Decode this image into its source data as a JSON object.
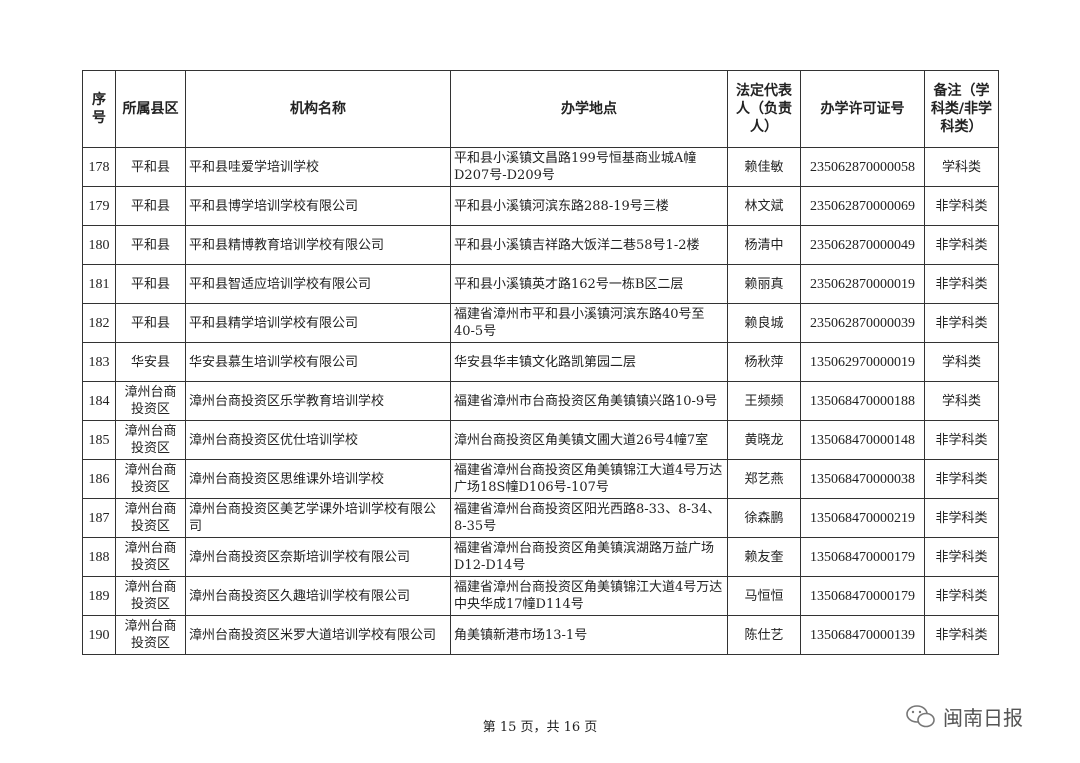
{
  "headers": [
    "序号",
    "所属县区",
    "机构名称",
    "办学地点",
    "法定代表人（负责人）",
    "办学许可证号",
    "备注（学科类/非学科类）"
  ],
  "rows": [
    [
      "178",
      "平和县",
      "平和县哇爱学培训学校",
      "平和县小溪镇文昌路199号恒基商业城A幢D207号-D209号",
      "赖佳敏",
      "235062870000058",
      "学科类"
    ],
    [
      "179",
      "平和县",
      "平和县博学培训学校有限公司",
      "平和县小溪镇河滨东路288-19号三楼",
      "林文斌",
      "235062870000069",
      "非学科类"
    ],
    [
      "180",
      "平和县",
      "平和县精博教育培训学校有限公司",
      "平和县小溪镇吉祥路大饭洋二巷58号1-2楼",
      "杨清中",
      "235062870000049",
      "非学科类"
    ],
    [
      "181",
      "平和县",
      "平和县智适应培训学校有限公司",
      "平和县小溪镇英才路162号一栋B区二层",
      "赖丽真",
      "235062870000019",
      "非学科类"
    ],
    [
      "182",
      "平和县",
      "平和县精学培训学校有限公司",
      "福建省漳州市平和县小溪镇河滨东路40号至40-5号",
      "赖良城",
      "235062870000039",
      "非学科类"
    ],
    [
      "183",
      "华安县",
      "华安县慕生培训学校有限公司",
      "华安县华丰镇文化路凯第园二层",
      "杨秋萍",
      "135062970000019",
      "学科类"
    ],
    [
      "184",
      "漳州台商投资区",
      "漳州台商投资区乐学教育培训学校",
      "福建省漳州市台商投资区角美镇镇兴路10-9号",
      "王频频",
      "135068470000188",
      "学科类"
    ],
    [
      "185",
      "漳州台商投资区",
      "漳州台商投资区优仕培训学校",
      "漳州台商投资区角美镇文圃大道26号4幢7室",
      "黄晓龙",
      "135068470000148",
      "非学科类"
    ],
    [
      "186",
      "漳州台商投资区",
      "漳州台商投资区思维课外培训学校",
      "福建省漳州台商投资区角美镇锦江大道4号万达广场18S幢D106号-107号",
      "郑艺燕",
      "135068470000038",
      "非学科类"
    ],
    [
      "187",
      "漳州台商投资区",
      "漳州台商投资区美艺学课外培训学校有限公司",
      "福建省漳州台商投资区阳光西路8-33、8-34、8-35号",
      "徐森鹏",
      "135068470000219",
      "非学科类"
    ],
    [
      "188",
      "漳州台商投资区",
      "漳州台商投资区奈斯培训学校有限公司",
      "福建省漳州台商投资区角美镇滨湖路万益广场D12-D14号",
      "赖友奎",
      "135068470000179",
      "非学科类"
    ],
    [
      "189",
      "漳州台商投资区",
      "漳州台商投资区久趣培训学校有限公司",
      "福建省漳州台商投资区角美镇锦江大道4号万达中央华成17幢D114号",
      "马恒恒",
      "135068470000179",
      "非学科类"
    ],
    [
      "190",
      "漳州台商投资区",
      "漳州台商投资区米罗大道培训学校有限公司",
      "角美镇新港市场13-1号",
      "陈仕艺",
      "135068470000139",
      "非学科类"
    ]
  ],
  "footer": "第 15 页，共 16 页",
  "watermark": {
    "text": "闽南日报",
    "icon": "wechat-icon"
  }
}
